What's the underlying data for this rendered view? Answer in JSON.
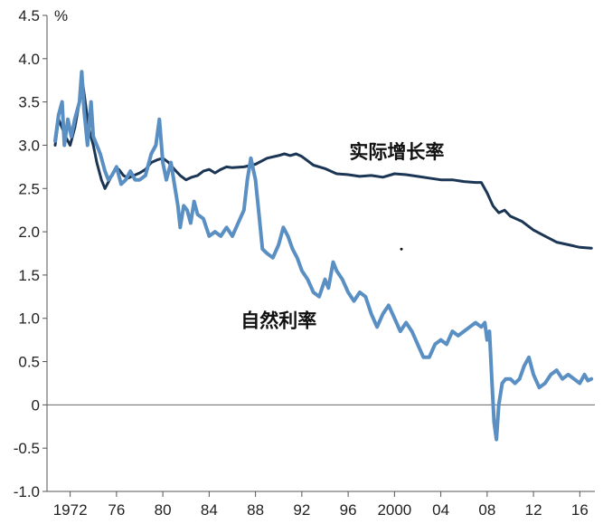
{
  "chart_data": {
    "type": "line",
    "ylabel": "%",
    "ylim": [
      -1.0,
      4.5
    ],
    "y_ticks": [
      "4.5",
      "4.0",
      "3.5",
      "3.0",
      "2.5",
      "2.0",
      "1.5",
      "1.0",
      "0.5",
      "0",
      "-0.5",
      "-1.0"
    ],
    "y_tick_values": [
      4.5,
      4.0,
      3.5,
      3.0,
      2.5,
      2.0,
      1.5,
      1.0,
      0.5,
      0,
      -0.5,
      -1.0
    ],
    "xlim": [
      1970,
      2017.3
    ],
    "x_ticks": [
      "1972",
      "76",
      "80",
      "84",
      "88",
      "92",
      "96",
      "2000",
      "04",
      "08",
      "12",
      "16"
    ],
    "x_tick_values": [
      1972,
      1976,
      1980,
      1984,
      1988,
      1992,
      1996,
      2000,
      2004,
      2008,
      2012,
      2016
    ],
    "grid": false,
    "zero_line": true,
    "series": [
      {
        "name": "实际增长率",
        "color": "#1b3554",
        "points": [
          [
            1970.7,
            3.0
          ],
          [
            1971.0,
            3.3
          ],
          [
            1971.3,
            3.2
          ],
          [
            1971.6,
            3.1
          ],
          [
            1972.0,
            3.0
          ],
          [
            1972.4,
            3.2
          ],
          [
            1972.8,
            3.5
          ],
          [
            1973.0,
            3.8
          ],
          [
            1973.3,
            3.5
          ],
          [
            1973.6,
            3.2
          ],
          [
            1974.0,
            3.0
          ],
          [
            1974.3,
            2.8
          ],
          [
            1974.7,
            2.6
          ],
          [
            1975.0,
            2.5
          ],
          [
            1975.4,
            2.6
          ],
          [
            1975.8,
            2.7
          ],
          [
            1976.2,
            2.72
          ],
          [
            1976.6,
            2.65
          ],
          [
            1977.0,
            2.62
          ],
          [
            1977.5,
            2.65
          ],
          [
            1978.0,
            2.68
          ],
          [
            1978.5,
            2.72
          ],
          [
            1979.0,
            2.8
          ],
          [
            1979.5,
            2.83
          ],
          [
            1980.0,
            2.85
          ],
          [
            1980.5,
            2.8
          ],
          [
            1981.0,
            2.72
          ],
          [
            1981.5,
            2.65
          ],
          [
            1982.0,
            2.6
          ],
          [
            1982.5,
            2.63
          ],
          [
            1983.0,
            2.65
          ],
          [
            1983.5,
            2.7
          ],
          [
            1984.0,
            2.72
          ],
          [
            1984.5,
            2.68
          ],
          [
            1985.0,
            2.72
          ],
          [
            1985.5,
            2.75
          ],
          [
            1986.0,
            2.74
          ],
          [
            1987.0,
            2.75
          ],
          [
            1988.0,
            2.78
          ],
          [
            1989.0,
            2.85
          ],
          [
            1990.0,
            2.88
          ],
          [
            1990.5,
            2.9
          ],
          [
            1991.0,
            2.88
          ],
          [
            1991.5,
            2.9
          ],
          [
            1992.0,
            2.87
          ],
          [
            1992.5,
            2.82
          ],
          [
            1993.0,
            2.77
          ],
          [
            1994.0,
            2.73
          ],
          [
            1995.0,
            2.67
          ],
          [
            1996.0,
            2.66
          ],
          [
            1997.0,
            2.64
          ],
          [
            1998.0,
            2.65
          ],
          [
            1999.0,
            2.63
          ],
          [
            2000.0,
            2.67
          ],
          [
            2001.0,
            2.66
          ],
          [
            2002.0,
            2.64
          ],
          [
            2003.0,
            2.62
          ],
          [
            2004.0,
            2.6
          ],
          [
            2005.0,
            2.6
          ],
          [
            2006.0,
            2.58
          ],
          [
            2007.0,
            2.57
          ],
          [
            2007.5,
            2.57
          ],
          [
            2008.0,
            2.45
          ],
          [
            2008.5,
            2.3
          ],
          [
            2009.0,
            2.22
          ],
          [
            2009.5,
            2.25
          ],
          [
            2010.0,
            2.18
          ],
          [
            2011.0,
            2.12
          ],
          [
            2012.0,
            2.02
          ],
          [
            2013.0,
            1.95
          ],
          [
            2014.0,
            1.88
          ],
          [
            2015.0,
            1.85
          ],
          [
            2016.0,
            1.82
          ],
          [
            2017.0,
            1.81
          ]
        ]
      },
      {
        "name": "自然利率",
        "color": "#5a8fc3",
        "points": [
          [
            1970.7,
            3.05
          ],
          [
            1971.0,
            3.35
          ],
          [
            1971.3,
            3.5
          ],
          [
            1971.5,
            3.0
          ],
          [
            1971.8,
            3.3
          ],
          [
            1972.1,
            3.1
          ],
          [
            1972.4,
            3.3
          ],
          [
            1972.8,
            3.5
          ],
          [
            1973.0,
            3.85
          ],
          [
            1973.2,
            3.4
          ],
          [
            1973.5,
            3.0
          ],
          [
            1973.8,
            3.5
          ],
          [
            1974.0,
            3.1
          ],
          [
            1974.3,
            3.0
          ],
          [
            1974.6,
            2.9
          ],
          [
            1975.0,
            2.7
          ],
          [
            1975.3,
            2.6
          ],
          [
            1975.6,
            2.65
          ],
          [
            1976.0,
            2.75
          ],
          [
            1976.4,
            2.55
          ],
          [
            1976.8,
            2.6
          ],
          [
            1977.2,
            2.7
          ],
          [
            1977.6,
            2.6
          ],
          [
            1978.0,
            2.6
          ],
          [
            1978.5,
            2.65
          ],
          [
            1979.0,
            2.9
          ],
          [
            1979.4,
            3.0
          ],
          [
            1979.7,
            3.3
          ],
          [
            1980.0,
            2.8
          ],
          [
            1980.3,
            2.6
          ],
          [
            1980.7,
            2.8
          ],
          [
            1981.0,
            2.55
          ],
          [
            1981.3,
            2.3
          ],
          [
            1981.5,
            2.05
          ],
          [
            1981.8,
            2.3
          ],
          [
            1982.1,
            2.25
          ],
          [
            1982.4,
            2.1
          ],
          [
            1982.7,
            2.35
          ],
          [
            1983.0,
            2.2
          ],
          [
            1983.5,
            2.15
          ],
          [
            1984.0,
            1.95
          ],
          [
            1984.5,
            2.0
          ],
          [
            1985.0,
            1.95
          ],
          [
            1985.5,
            2.05
          ],
          [
            1986.0,
            1.95
          ],
          [
            1986.5,
            2.1
          ],
          [
            1987.0,
            2.25
          ],
          [
            1987.3,
            2.6
          ],
          [
            1987.6,
            2.85
          ],
          [
            1988.0,
            2.6
          ],
          [
            1988.3,
            2.2
          ],
          [
            1988.6,
            1.8
          ],
          [
            1989.0,
            1.75
          ],
          [
            1989.5,
            1.7
          ],
          [
            1990.0,
            1.85
          ],
          [
            1990.4,
            2.05
          ],
          [
            1990.8,
            1.95
          ],
          [
            1991.2,
            1.8
          ],
          [
            1991.6,
            1.7
          ],
          [
            1992.0,
            1.55
          ],
          [
            1992.5,
            1.45
          ],
          [
            1993.0,
            1.3
          ],
          [
            1993.5,
            1.25
          ],
          [
            1994.0,
            1.45
          ],
          [
            1994.3,
            1.35
          ],
          [
            1994.7,
            1.65
          ],
          [
            1995.0,
            1.55
          ],
          [
            1995.5,
            1.45
          ],
          [
            1996.0,
            1.3
          ],
          [
            1996.5,
            1.2
          ],
          [
            1997.0,
            1.3
          ],
          [
            1997.5,
            1.25
          ],
          [
            1998.0,
            1.05
          ],
          [
            1998.5,
            0.9
          ],
          [
            1999.0,
            1.05
          ],
          [
            1999.5,
            1.15
          ],
          [
            2000.0,
            1.0
          ],
          [
            2000.5,
            0.85
          ],
          [
            2001.0,
            0.95
          ],
          [
            2001.5,
            0.85
          ],
          [
            2002.0,
            0.7
          ],
          [
            2002.5,
            0.55
          ],
          [
            2003.0,
            0.55
          ],
          [
            2003.5,
            0.7
          ],
          [
            2004.0,
            0.75
          ],
          [
            2004.5,
            0.7
          ],
          [
            2005.0,
            0.85
          ],
          [
            2005.5,
            0.8
          ],
          [
            2006.0,
            0.85
          ],
          [
            2006.5,
            0.9
          ],
          [
            2007.0,
            0.95
          ],
          [
            2007.5,
            0.9
          ],
          [
            2007.8,
            0.95
          ],
          [
            2008.0,
            0.75
          ],
          [
            2008.2,
            0.85
          ],
          [
            2008.4,
            0.3
          ],
          [
            2008.6,
            -0.2
          ],
          [
            2008.8,
            -0.4
          ],
          [
            2009.0,
            0.0
          ],
          [
            2009.3,
            0.25
          ],
          [
            2009.6,
            0.3
          ],
          [
            2010.0,
            0.3
          ],
          [
            2010.4,
            0.25
          ],
          [
            2010.8,
            0.3
          ],
          [
            2011.2,
            0.45
          ],
          [
            2011.6,
            0.55
          ],
          [
            2012.0,
            0.35
          ],
          [
            2012.5,
            0.2
          ],
          [
            2013.0,
            0.25
          ],
          [
            2013.5,
            0.35
          ],
          [
            2014.0,
            0.4
          ],
          [
            2014.5,
            0.3
          ],
          [
            2015.0,
            0.35
          ],
          [
            2015.5,
            0.3
          ],
          [
            2016.0,
            0.25
          ],
          [
            2016.4,
            0.35
          ],
          [
            2016.7,
            0.28
          ],
          [
            2017.0,
            0.3
          ]
        ]
      }
    ],
    "annotations": [
      {
        "text": "实际增长率",
        "x": 2000.2,
        "y": 2.85,
        "color": "#111111"
      },
      {
        "text": "自然利率",
        "x": 1990.0,
        "y": 0.9,
        "color": "#111111"
      }
    ],
    "marks": [
      {
        "x": 2000.6,
        "y": 1.8
      }
    ]
  }
}
